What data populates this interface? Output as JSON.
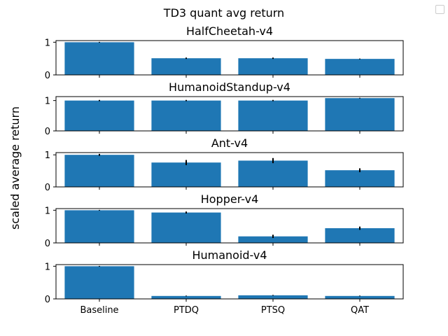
{
  "chart_data": {
    "type": "bar",
    "title": "TD3 quant avg return",
    "ylabel": "scaled average return",
    "xlabel": "",
    "categories": [
      "Baseline",
      "PTDQ",
      "PTSQ",
      "QAT"
    ],
    "legend": {
      "placement": "top-right",
      "entries": []
    },
    "bar_color": "#1f77b4",
    "error_color": "#000000",
    "grid": false,
    "subplots": [
      {
        "title": "HalfCheetah-v4",
        "ylim": [
          0,
          1.05
        ],
        "yticks": [
          "0",
          "1"
        ],
        "values": [
          1.0,
          0.51,
          0.51,
          0.49
        ],
        "errors": [
          0.01,
          0.02,
          0.02,
          0.01
        ]
      },
      {
        "title": "HumanoidStandup-v4",
        "ylim": [
          0,
          1.13
        ],
        "yticks": [
          "0",
          "1"
        ],
        "values": [
          1.0,
          1.0,
          1.0,
          1.08
        ],
        "errors": [
          0.02,
          0.02,
          0.02,
          0.01
        ]
      },
      {
        "title": "Ant-v4",
        "ylim": [
          0,
          1.07
        ],
        "yticks": [
          "0",
          "1"
        ],
        "values": [
          1.0,
          0.76,
          0.82,
          0.52
        ],
        "errors": [
          0.03,
          0.08,
          0.08,
          0.06
        ]
      },
      {
        "title": "Hopper-v4",
        "ylim": [
          0,
          1.05
        ],
        "yticks": [
          "0",
          "1"
        ],
        "values": [
          1.0,
          0.93,
          0.2,
          0.45
        ],
        "errors": [
          0.01,
          0.03,
          0.05,
          0.05
        ]
      },
      {
        "title": "Humanoid-v4",
        "ylim": [
          0,
          1.05
        ],
        "yticks": [
          "0",
          "1"
        ],
        "values": [
          1.0,
          0.09,
          0.11,
          0.09
        ],
        "errors": [
          0.01,
          0.01,
          0.01,
          0.01
        ]
      }
    ]
  }
}
